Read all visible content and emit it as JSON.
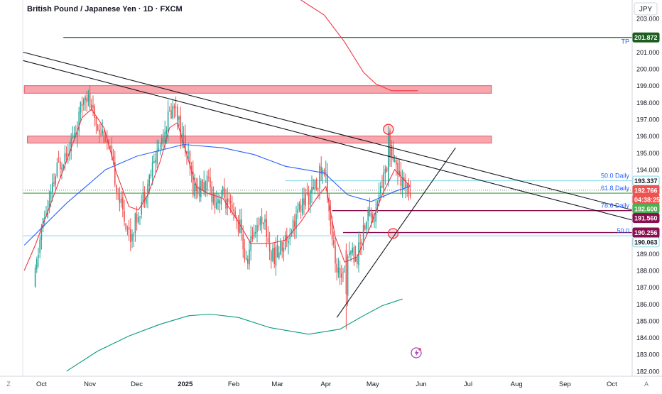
{
  "header": {
    "title": "British Pound / Japanese Yen · 1D · FXCM"
  },
  "currency": "JPY",
  "footer": {
    "left_marker": "Z",
    "right_marker": "A"
  },
  "colors": {
    "bull": "#26a69a",
    "bear": "#ef5350",
    "ema_red": "#f23645",
    "ma_blue": "#2962ff",
    "band_teal": "#089981",
    "zone_fill": "#f7a6ad",
    "zone_border": "#e05a66",
    "tp_green": "#1b5e20",
    "fib_cyan": "#7fd8e8",
    "maroon": "#880e4f",
    "label_blue": "#2962ff"
  },
  "chart_data": {
    "type": "candlestick",
    "symbol": "GBP/JPY",
    "interval": "1D",
    "ylim": [
      181.7,
      204.1
    ],
    "y_ticks": [
      "182.000",
      "183.000",
      "184.000",
      "185.000",
      "186.000",
      "187.000",
      "188.000",
      "189.000",
      "190.000",
      "191.000",
      "192.000",
      "193.000",
      "194.000",
      "195.000",
      "196.000",
      "197.000",
      "198.000",
      "199.000",
      "200.000",
      "201.000",
      "202.000",
      "203.000"
    ],
    "x_ticks": [
      {
        "label": "Oct",
        "day": 4
      },
      {
        "label": "Nov",
        "day": 35
      },
      {
        "label": "Dec",
        "day": 65
      },
      {
        "label": "2025",
        "day": 96
      },
      {
        "label": "Feb",
        "day": 127
      },
      {
        "label": "Mar",
        "day": 155
      },
      {
        "label": "Apr",
        "day": 186
      },
      {
        "label": "May",
        "day": 216
      },
      {
        "label": "Jun",
        "day": 247
      },
      {
        "label": "Jul",
        "day": 277
      },
      {
        "label": "Aug",
        "day": 308
      },
      {
        "label": "Sep",
        "day": 339
      },
      {
        "label": "Oct",
        "day": 369
      }
    ],
    "x_range_days": [
      -8,
      382
    ],
    "anchors": [
      [
        -1,
        187.0
      ],
      [
        4,
        190.5
      ],
      [
        9,
        192.0
      ],
      [
        14,
        194.0
      ],
      [
        20,
        195.2
      ],
      [
        26,
        196.2
      ],
      [
        32,
        198.8
      ],
      [
        36,
        197.5
      ],
      [
        40,
        196.6
      ],
      [
        45,
        196.0
      ],
      [
        50,
        194.0
      ],
      [
        55,
        191.8
      ],
      [
        61,
        190.0
      ],
      [
        66,
        191.5
      ],
      [
        72,
        193.2
      ],
      [
        78,
        195.0
      ],
      [
        85,
        197.1
      ],
      [
        90,
        198.0
      ],
      [
        93,
        196.2
      ],
      [
        97,
        195.0
      ],
      [
        101,
        193.0
      ],
      [
        105,
        192.8
      ],
      [
        110,
        193.2
      ],
      [
        115,
        192.2
      ],
      [
        120,
        192.5
      ],
      [
        126,
        191.3
      ],
      [
        131,
        190.6
      ],
      [
        135,
        188.3
      ],
      [
        140,
        190.5
      ],
      [
        146,
        191.2
      ],
      [
        151,
        188.8
      ],
      [
        155,
        189.0
      ],
      [
        161,
        190.0
      ],
      [
        167,
        191.2
      ],
      [
        173,
        192.3
      ],
      [
        178,
        192.6
      ],
      [
        183,
        194.0
      ],
      [
        186,
        193.6
      ],
      [
        190,
        190.0
      ],
      [
        193,
        187.5
      ],
      [
        197,
        188.2
      ],
      [
        201,
        189.2
      ],
      [
        206,
        188.8
      ],
      [
        210,
        190.6
      ],
      [
        214,
        191.5
      ],
      [
        217,
        191.0
      ],
      [
        220,
        192.6
      ],
      [
        224,
        193.8
      ],
      [
        228,
        195.5
      ],
      [
        230,
        194.7
      ],
      [
        234,
        193.0
      ],
      [
        238,
        193.4
      ],
      [
        240,
        192.8
      ]
    ],
    "extra_candles": [
      {
        "day": 199,
        "open": 189.2,
        "high": 189.6,
        "low": 184.5,
        "close": 186.6
      },
      {
        "day": 226,
        "open": 193.2,
        "high": 196.6,
        "low": 193.0,
        "close": 196.2
      }
    ],
    "ema_red": [
      [
        -7,
        188.0
      ],
      [
        0,
        189.5
      ],
      [
        10,
        192.0
      ],
      [
        20,
        194.5
      ],
      [
        30,
        197.1
      ],
      [
        36,
        197.6
      ],
      [
        44,
        196.5
      ],
      [
        52,
        193.8
      ],
      [
        60,
        191.8
      ],
      [
        66,
        191.6
      ],
      [
        72,
        192.5
      ],
      [
        80,
        194.5
      ],
      [
        86,
        196.5
      ],
      [
        91,
        196.8
      ],
      [
        96,
        195.2
      ],
      [
        103,
        193.0
      ],
      [
        110,
        192.6
      ],
      [
        120,
        192.3
      ],
      [
        130,
        190.9
      ],
      [
        138,
        189.6
      ],
      [
        150,
        189.6
      ],
      [
        160,
        189.8
      ],
      [
        170,
        190.9
      ],
      [
        180,
        192.3
      ],
      [
        186,
        193.0
      ],
      [
        192,
        190.0
      ],
      [
        198,
        188.5
      ],
      [
        206,
        188.8
      ],
      [
        214,
        190.5
      ],
      [
        222,
        192.5
      ],
      [
        230,
        194.0
      ],
      [
        240,
        193.0
      ]
    ],
    "ma_blue": [
      [
        -7,
        189.5
      ],
      [
        20,
        192.0
      ],
      [
        45,
        194.0
      ],
      [
        65,
        194.8
      ],
      [
        95,
        195.5
      ],
      [
        120,
        195.3
      ],
      [
        140,
        194.9
      ],
      [
        160,
        194.2
      ],
      [
        185,
        193.8
      ],
      [
        200,
        192.5
      ],
      [
        215,
        192.1
      ],
      [
        230,
        192.7
      ],
      [
        240,
        193.0
      ]
    ],
    "band_lower": [
      [
        20,
        182.0
      ],
      [
        40,
        183.2
      ],
      [
        60,
        184.1
      ],
      [
        80,
        184.8
      ],
      [
        98,
        185.3
      ],
      [
        112,
        185.4
      ],
      [
        130,
        185.2
      ],
      [
        150,
        184.6
      ],
      [
        175,
        184.2
      ],
      [
        195,
        184.5
      ],
      [
        210,
        185.3
      ],
      [
        222,
        185.9
      ],
      [
        235,
        186.3
      ]
    ],
    "band_upper": [
      [
        170,
        204.1
      ],
      [
        185,
        203.2
      ],
      [
        198,
        201.6
      ],
      [
        210,
        199.8
      ],
      [
        218,
        199.1
      ],
      [
        228,
        198.7
      ],
      [
        245,
        198.7
      ]
    ],
    "zones": [
      {
        "label": "zone-199",
        "from_day": -7,
        "to_day": 292,
        "top": 199.0,
        "bottom": 198.55
      },
      {
        "label": "zone-196",
        "from_day": -5,
        "to_day": 292,
        "top": 196.0,
        "bottom": 195.58
      }
    ],
    "horizontal_lines": [
      {
        "label": "TP",
        "price": 201.872,
        "from_day": 18,
        "text": "TP"
      },
      {
        "label": "fib-50",
        "price": 193.337,
        "from_day": 160,
        "text": "50.0 Daily"
      },
      {
        "label": "fib-61.8",
        "price": 192.6,
        "from_day": -8,
        "text": "61.8 Daily"
      },
      {
        "label": "fib-78.6",
        "price": 191.56,
        "from_day": 190,
        "text": "78.6 Daily"
      },
      {
        "label": "line-190.256",
        "price": 190.256,
        "from_day": 197,
        "text": ""
      },
      {
        "label": "fib-50-weekly",
        "price": 190.063,
        "from_day": -8,
        "text": "50.0"
      }
    ],
    "trendlines": [
      {
        "from": [
          -8,
          201.0
        ],
        "to": [
          382,
          191.6
        ]
      },
      {
        "from": [
          -8,
          200.5
        ],
        "to": [
          382,
          191.0
        ]
      },
      {
        "from": [
          193,
          185.2
        ],
        "to": [
          269,
          195.3
        ]
      }
    ],
    "circles": [
      {
        "day": 226,
        "price": 196.4
      },
      {
        "day": 229,
        "price": 190.2
      }
    ],
    "price_labels": [
      {
        "text": "201.872",
        "price": 201.872,
        "bg": "#1b5e20",
        "fg": "#ffffff"
      },
      {
        "text": "193.337",
        "price": 193.337,
        "bg": "#ffffff",
        "fg": "#131722",
        "border": "#7fd8e8"
      },
      {
        "text": "192.766",
        "price": 192.78,
        "bg": "#ef5350",
        "fg": "#ffffff"
      },
      {
        "text": "04:38:25",
        "price": 192.23,
        "bg": "#ef5350",
        "fg": "#ffffff"
      },
      {
        "text": "192.600",
        "price": 191.68,
        "bg": "#4caf50",
        "fg": "#ffffff"
      },
      {
        "text": "191.560",
        "price": 191.12,
        "bg": "#880e4f",
        "fg": "#ffffff"
      },
      {
        "text": "190.256",
        "price": 190.256,
        "bg": "#880e4f",
        "fg": "#ffffff"
      },
      {
        "text": "190.063",
        "price": 189.68,
        "bg": "#ffffff",
        "fg": "#131722",
        "border": "#7fd8e8"
      }
    ]
  }
}
